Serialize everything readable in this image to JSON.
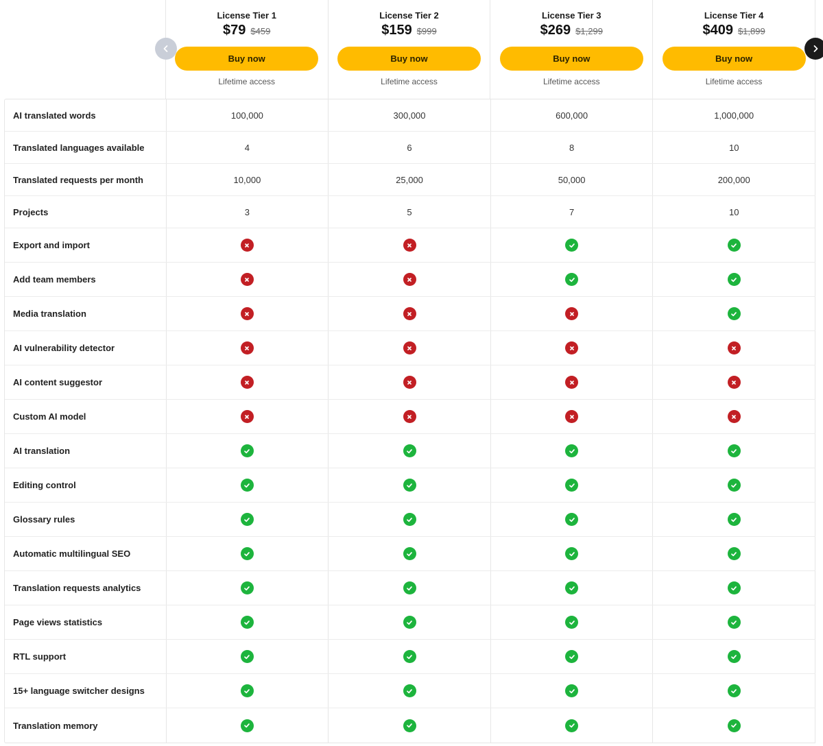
{
  "tiers": [
    {
      "name": "License Tier 1",
      "price": "$79",
      "old_price": "$459",
      "button": "Buy now",
      "access": "Lifetime access"
    },
    {
      "name": "License Tier 2",
      "price": "$159",
      "old_price": "$999",
      "button": "Buy now",
      "access": "Lifetime access"
    },
    {
      "name": "License Tier 3",
      "price": "$269",
      "old_price": "$1,299",
      "button": "Buy now",
      "access": "Lifetime access"
    },
    {
      "name": "License Tier 4",
      "price": "$409",
      "old_price": "$1,899",
      "button": "Buy now",
      "access": "Lifetime access"
    }
  ],
  "navigation": {
    "prev_icon": "chevron-left-icon",
    "next_icon": "chevron-right-icon"
  },
  "colors": {
    "button": "#ffbb00",
    "check": "#1db43d",
    "cross": "#c21f24",
    "nav_prev": "#c9ced8",
    "nav_next": "#1b1b1b"
  },
  "text_rows": [
    {
      "feature": "AI translated words",
      "values": [
        "100,000",
        "300,000",
        "600,000",
        "1,000,000"
      ]
    },
    {
      "feature": "Translated languages available",
      "values": [
        "4",
        "6",
        "8",
        "10"
      ]
    },
    {
      "feature": "Translated requests per month",
      "values": [
        "10,000",
        "25,000",
        "50,000",
        "200,000"
      ]
    },
    {
      "feature": "Projects",
      "values": [
        "3",
        "5",
        "7",
        "10"
      ]
    }
  ],
  "icon_rows": [
    {
      "feature": "Export and import",
      "values": [
        "no",
        "no",
        "yes",
        "yes"
      ]
    },
    {
      "feature": "Add team members",
      "values": [
        "no",
        "no",
        "yes",
        "yes"
      ]
    },
    {
      "feature": "Media translation",
      "values": [
        "no",
        "no",
        "no",
        "yes"
      ]
    },
    {
      "feature": "AI vulnerability detector",
      "values": [
        "no",
        "no",
        "no",
        "no"
      ]
    },
    {
      "feature": "AI content suggestor",
      "values": [
        "no",
        "no",
        "no",
        "no"
      ]
    },
    {
      "feature": "Custom AI model",
      "values": [
        "no",
        "no",
        "no",
        "no"
      ]
    },
    {
      "feature": "AI translation",
      "values": [
        "yes",
        "yes",
        "yes",
        "yes"
      ]
    },
    {
      "feature": "Editing control",
      "values": [
        "yes",
        "yes",
        "yes",
        "yes"
      ]
    },
    {
      "feature": "Glossary rules",
      "values": [
        "yes",
        "yes",
        "yes",
        "yes"
      ]
    },
    {
      "feature": "Automatic multilingual SEO",
      "values": [
        "yes",
        "yes",
        "yes",
        "yes"
      ]
    },
    {
      "feature": "Translation requests analytics",
      "values": [
        "yes",
        "yes",
        "yes",
        "yes"
      ]
    },
    {
      "feature": "Page views statistics",
      "values": [
        "yes",
        "yes",
        "yes",
        "yes"
      ]
    },
    {
      "feature": "RTL support",
      "values": [
        "yes",
        "yes",
        "yes",
        "yes"
      ]
    },
    {
      "feature": "15+ language switcher designs",
      "values": [
        "yes",
        "yes",
        "yes",
        "yes"
      ]
    },
    {
      "feature": "Translation memory",
      "values": [
        "yes",
        "yes",
        "yes",
        "yes"
      ]
    }
  ]
}
